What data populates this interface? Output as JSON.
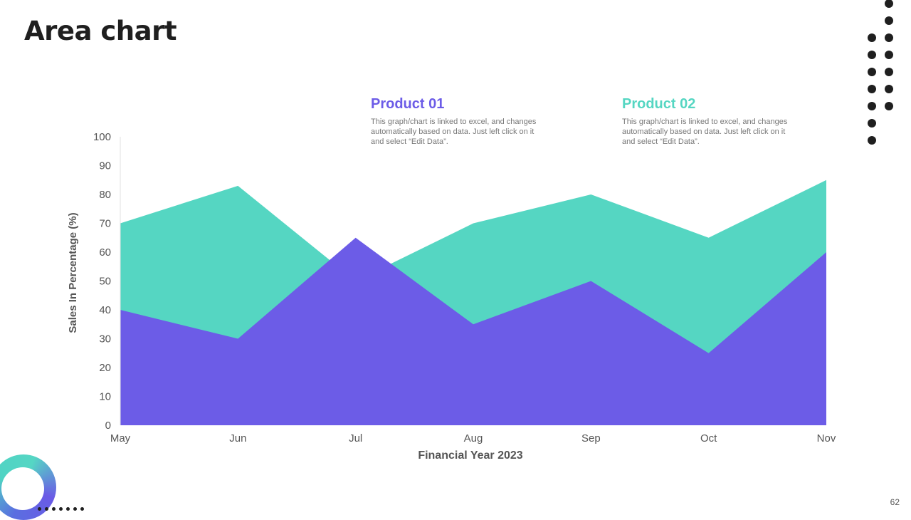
{
  "slide": {
    "title": "Area chart",
    "page_number": "62"
  },
  "legend": [
    {
      "title": "Product 01",
      "description": "This graph/chart is linked to excel, and changes automatically based on data. Just left click on it and select “Edit Data”.",
      "color": "#6c5ce7"
    },
    {
      "title": "Product 02",
      "description": "This graph/chart is linked to excel, and changes automatically based on data. Just left click on it and select “Edit Data”.",
      "color": "#55d6c2"
    }
  ],
  "chart_data": {
    "type": "area",
    "categories": [
      "May",
      "Jun",
      "Jul",
      "Aug",
      "Sep",
      "Oct",
      "Nov"
    ],
    "series": [
      {
        "name": "Product 02",
        "values": [
          70,
          83,
          50,
          70,
          80,
          65,
          85
        ],
        "color": "#55d6c2"
      },
      {
        "name": "Product 01",
        "values": [
          40,
          30,
          65,
          35,
          50,
          25,
          60
        ],
        "color": "#6c5ce7"
      }
    ],
    "xlabel": "Financial Year 2023",
    "ylabel": "Sales In Percentage (%)",
    "ylim": [
      0,
      100
    ],
    "yticks": [
      0,
      10,
      20,
      30,
      40,
      50,
      60,
      70,
      80,
      90,
      100
    ],
    "grid": false
  }
}
